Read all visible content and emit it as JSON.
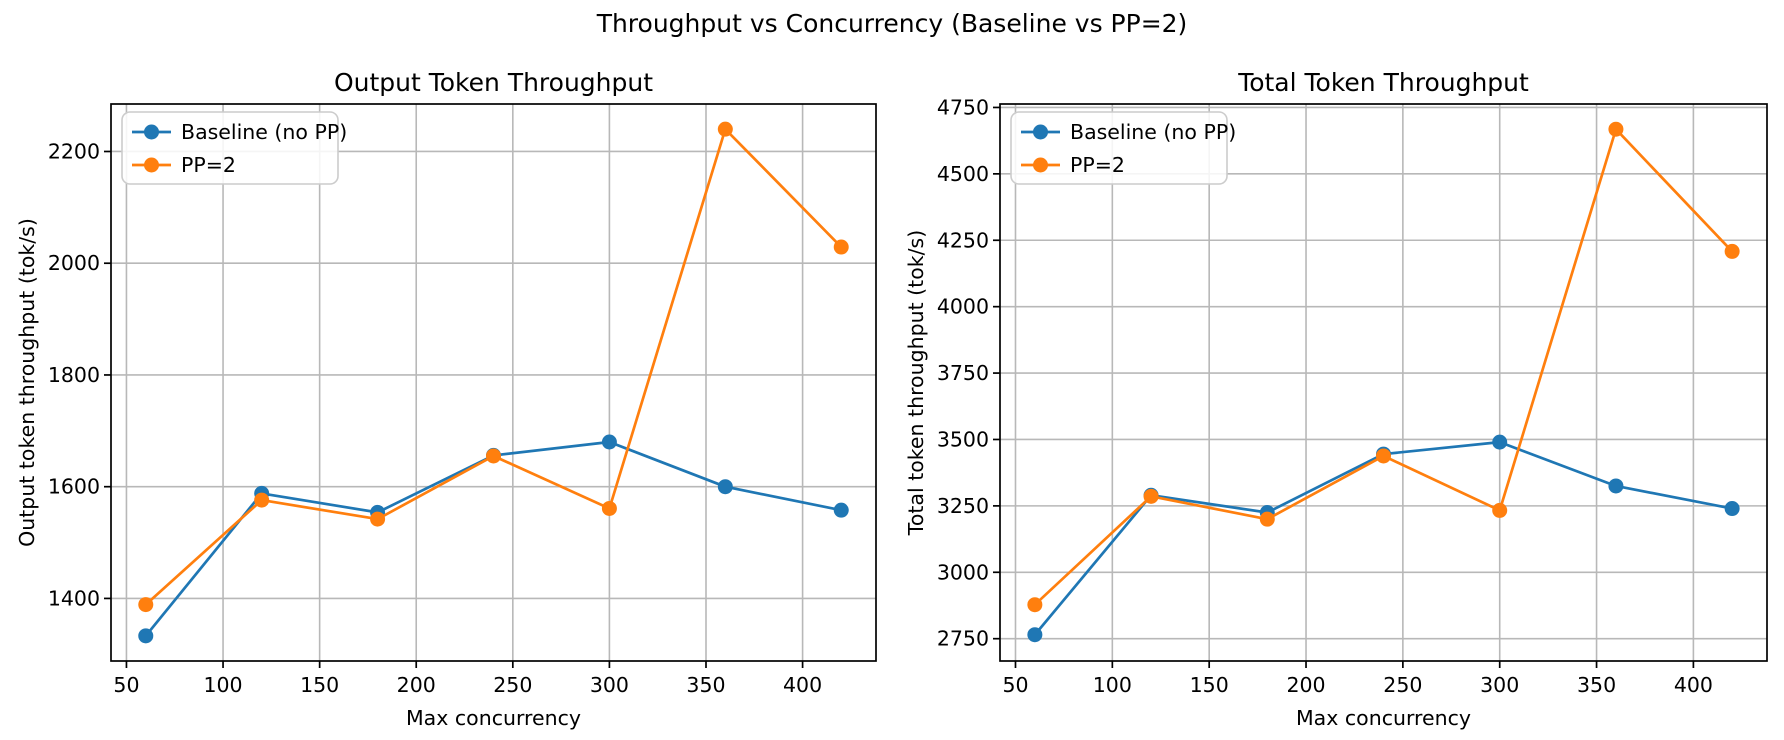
{
  "suptitle": "Throughput vs Concurrency (Baseline vs PP=2)",
  "colors": {
    "baseline_series": "#1f77b4",
    "pp2_series": "#ff7f0e",
    "grid": "#b8b8b8",
    "spine": "#000000",
    "text": "#000000",
    "legend_border": "#cccccc",
    "background": "#ffffff"
  },
  "chart_data": [
    {
      "type": "line",
      "title": "Output Token Throughput",
      "xlabel": "Max concurrency",
      "ylabel": "Output token throughput (tok/s)",
      "x": [
        60,
        120,
        180,
        240,
        300,
        360,
        420
      ],
      "series": [
        {
          "name": "Baseline (no PP)",
          "color": "#1f77b4",
          "values": [
            1333,
            1588,
            1554,
            1656,
            1680,
            1600,
            1558
          ]
        },
        {
          "name": "PP=2",
          "color": "#ff7f0e",
          "values": [
            1389,
            1576,
            1542,
            1655,
            1561,
            2240,
            2029
          ]
        }
      ],
      "xlim": [
        42,
        438
      ],
      "ylim": [
        1288,
        2285
      ],
      "xticks": [
        50,
        100,
        150,
        200,
        250,
        300,
        350,
        400
      ],
      "yticks": [
        1400,
        1600,
        1800,
        2000,
        2200
      ],
      "grid": true,
      "legend_position": "upper left"
    },
    {
      "type": "line",
      "title": "Total Token Throughput",
      "xlabel": "Max concurrency",
      "ylabel": "Total token throughput (tok/s)",
      "x": [
        60,
        120,
        180,
        240,
        300,
        360,
        420
      ],
      "series": [
        {
          "name": "Baseline (no PP)",
          "color": "#1f77b4",
          "values": [
            2765,
            3290,
            3225,
            3445,
            3490,
            3325,
            3240
          ]
        },
        {
          "name": "PP=2",
          "color": "#ff7f0e",
          "values": [
            2878,
            3286,
            3200,
            3438,
            3233,
            4668,
            4208
          ]
        }
      ],
      "xlim": [
        42,
        438
      ],
      "ylim": [
        2666,
        4763
      ],
      "xticks": [
        50,
        100,
        150,
        200,
        250,
        300,
        350,
        400
      ],
      "yticks": [
        2750,
        3000,
        3250,
        3500,
        3750,
        4000,
        4250,
        4500,
        4750
      ],
      "grid": true,
      "legend_position": "upper left"
    }
  ]
}
